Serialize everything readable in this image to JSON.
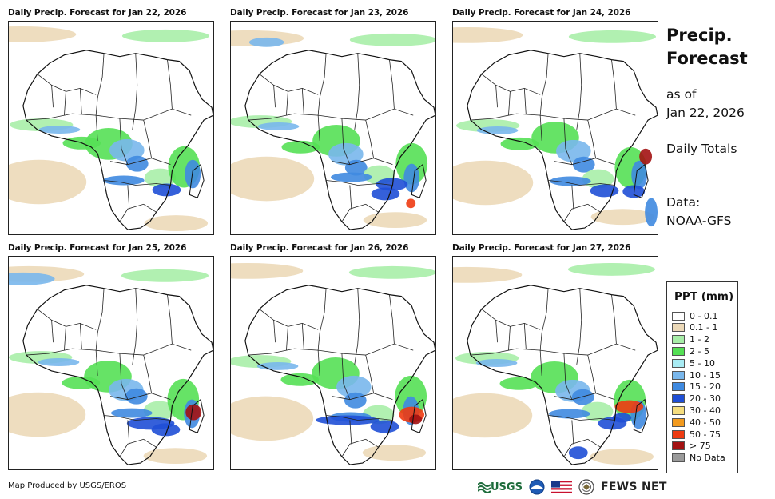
{
  "panels": [
    {
      "title": "Daily Precip. Forecast for Jan 22, 2026"
    },
    {
      "title": "Daily Precip. Forecast for Jan 23, 2026"
    },
    {
      "title": "Daily Precip. Forecast for Jan 24, 2026"
    },
    {
      "title": "Daily Precip. Forecast for Jan 25, 2026"
    },
    {
      "title": "Daily Precip. Forecast for Jan 26, 2026"
    },
    {
      "title": "Daily Precip. Forecast for Jan 27, 2026"
    }
  ],
  "side": {
    "heading_line1": "Precip.",
    "heading_line2": "Forecast",
    "asof_line1": "as of",
    "asof_line2": "Jan 22, 2026",
    "totals": "Daily Totals",
    "data_line1": "Data:",
    "data_line2": "NOAA-GFS"
  },
  "legend": {
    "title": "PPT (mm)",
    "items": [
      {
        "label": "0 - 0.1",
        "color": "#ffffff"
      },
      {
        "label": "0.1 - 1",
        "color": "#ecd9b8"
      },
      {
        "label": "1 - 2",
        "color": "#a8eea8"
      },
      {
        "label": "2 - 5",
        "color": "#55e055"
      },
      {
        "label": "5 - 10",
        "color": "#a9ecf4"
      },
      {
        "label": "10 - 15",
        "color": "#79b7ec"
      },
      {
        "label": "15 - 20",
        "color": "#3f8ae0"
      },
      {
        "label": "20 - 30",
        "color": "#1f4fd6"
      },
      {
        "label": "30 - 40",
        "color": "#f5dd7e"
      },
      {
        "label": "40 - 50",
        "color": "#f29a1e"
      },
      {
        "label": "50 - 75",
        "color": "#ee3b12"
      },
      {
        "label": "> 75",
        "color": "#a31212"
      },
      {
        "label": "No Data",
        "color": "#9a9a9a"
      }
    ]
  },
  "footer": {
    "credit": "Map Produced by USGS/EROS",
    "usgs": "USGS",
    "fews": "FEWS NET"
  }
}
